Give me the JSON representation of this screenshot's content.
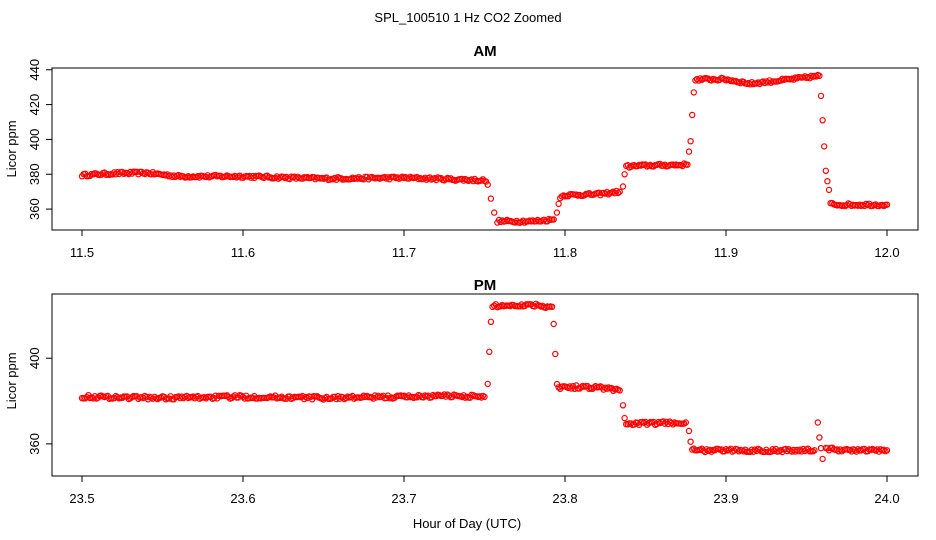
{
  "figure": {
    "title": "SPL_100510  1 Hz CO2 Zoomed",
    "xlabel": "Hour of Day (UTC)"
  },
  "chart_data": [
    {
      "type": "scatter",
      "title": "AM",
      "ylabel": "Licor ppm",
      "xlim": [
        11.5,
        12.0
      ],
      "ylim": [
        348,
        441
      ],
      "xticks": [
        "11.5",
        "11.6",
        "11.7",
        "11.8",
        "11.9",
        "12.0"
      ],
      "yticks": [
        "360",
        "380",
        "400",
        "420",
        "440"
      ],
      "marker_color": "#ff0000",
      "marker": "open-circle",
      "series": [
        {
          "x": [
            11.5,
            11.52,
            11.54,
            11.56,
            11.6,
            11.65,
            11.7,
            11.75,
            11.752,
            11.754,
            11.756,
            11.758,
            11.78,
            11.793,
            11.795,
            11.796,
            11.797,
            11.8,
            11.82,
            11.834,
            11.836,
            11.837,
            11.838,
            11.85,
            11.876,
            11.877,
            11.878,
            11.879,
            11.88,
            11.881,
            11.9,
            11.915,
            11.94,
            11.958,
            11.959,
            11.96,
            11.961,
            11.962,
            11.963,
            11.964,
            11.965,
            11.97,
            11.985,
            12.0
          ],
          "y": [
            379.5,
            380.5,
            380.8,
            378.8,
            378.8,
            377.5,
            378.0,
            376.5,
            374,
            366,
            358,
            353,
            353,
            354,
            358,
            363,
            367,
            368,
            368.5,
            370,
            373,
            380,
            384.5,
            385,
            385.5,
            393,
            399,
            414,
            427,
            434.5,
            434.5,
            432,
            434.5,
            436.5,
            425,
            411,
            396,
            382,
            376,
            371,
            363,
            362.5,
            362.5,
            362.5
          ]
        }
      ]
    },
    {
      "type": "scatter",
      "title": "PM",
      "ylabel": "Licor ppm",
      "xlim": [
        23.5,
        24.0
      ],
      "ylim": [
        345,
        430
      ],
      "xticks": [
        "23.5",
        "23.6",
        "23.7",
        "23.8",
        "23.9",
        "24.0"
      ],
      "yticks": [
        "360",
        "400"
      ],
      "marker_color": "#ff0000",
      "marker": "open-circle",
      "series": [
        {
          "x": [
            23.5,
            23.55,
            23.6,
            23.65,
            23.7,
            23.73,
            23.75,
            23.752,
            23.753,
            23.754,
            23.755,
            23.756,
            23.76,
            23.78,
            23.792,
            23.793,
            23.794,
            23.795,
            23.796,
            23.797,
            23.8,
            23.82,
            23.834,
            23.836,
            23.837,
            23.838,
            23.85,
            23.875,
            23.877,
            23.878,
            23.879,
            23.88,
            23.9,
            23.93,
            23.955,
            23.957,
            23.958,
            23.959,
            23.96,
            23.962,
            23.964,
            23.98,
            24.0
          ],
          "y": [
            382,
            381.5,
            382,
            381.5,
            382,
            382.5,
            382,
            388,
            403,
            417,
            423.5,
            424.5,
            424.5,
            425,
            424,
            416,
            402,
            388,
            386.5,
            386.5,
            386.5,
            386.5,
            385,
            378,
            372,
            369.5,
            369.5,
            370,
            366,
            361,
            357.5,
            357,
            357,
            357,
            357,
            370,
            363,
            358,
            353,
            358,
            357.5,
            357,
            357
          ]
        }
      ]
    }
  ]
}
